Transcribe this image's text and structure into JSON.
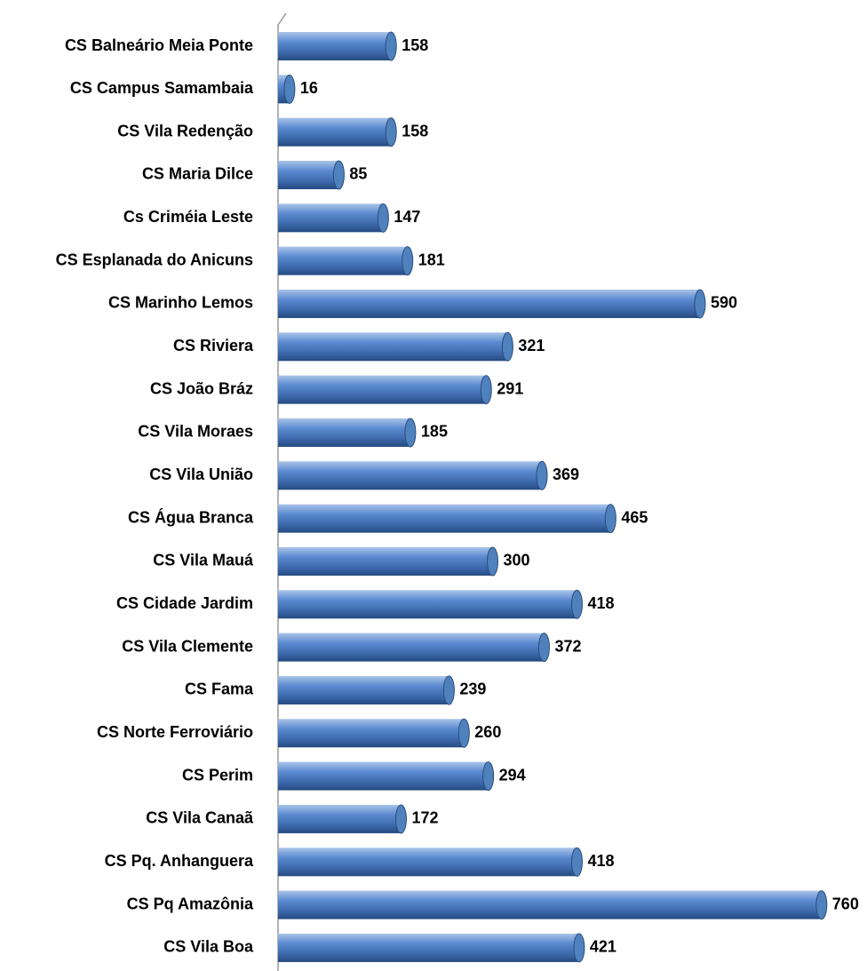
{
  "chart_data": {
    "type": "bar",
    "orientation": "horizontal",
    "categories": [
      "CS Balneário Meia Ponte",
      "CS Campus Samambaia",
      "CS Vila Redenção",
      "CS Maria Dilce",
      "Cs Criméia Leste",
      "CS Esplanada do Anicuns",
      "CS Marinho Lemos",
      "CS Riviera",
      "CS João Bráz",
      "CS Vila Moraes",
      "CS Vila União",
      "CS Água Branca",
      "CS Vila Mauá",
      "CS Cidade Jardim",
      "CS Vila Clemente",
      "CS Fama",
      "CS Norte Ferroviário",
      "CS Perim",
      "CS Vila Canaã",
      "CS Pq. Anhanguera",
      "CS Pq Amazônia",
      "CS Vila Boa"
    ],
    "values": [
      158,
      16,
      158,
      85,
      147,
      181,
      590,
      321,
      291,
      185,
      369,
      465,
      300,
      418,
      372,
      239,
      260,
      294,
      172,
      418,
      760,
      421
    ],
    "color": "#4f81bd",
    "xlim": [
      0,
      800
    ]
  }
}
